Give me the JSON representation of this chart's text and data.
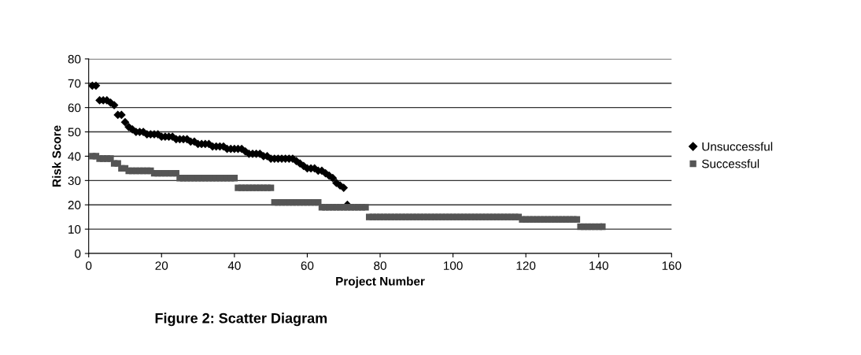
{
  "chart_data": {
    "type": "scatter",
    "title": "Figure 2: Scatter Diagram",
    "xlabel": "Project Number",
    "ylabel": "Risk Score",
    "xlim": [
      0,
      160
    ],
    "xticks": [
      0,
      20,
      40,
      60,
      80,
      100,
      120,
      140,
      160
    ],
    "ylim": [
      0,
      80
    ],
    "yticks": [
      0,
      10,
      20,
      30,
      40,
      50,
      60,
      70,
      80
    ],
    "grid": "y",
    "legend": "right",
    "series": [
      {
        "name": "Unsuccessful",
        "color": "#000000",
        "marker": "diamond",
        "x": [
          1,
          2,
          3,
          4,
          5,
          6,
          7,
          8,
          9,
          10,
          11,
          12,
          13,
          14,
          15,
          16,
          17,
          18,
          19,
          20,
          21,
          22,
          23,
          24,
          25,
          26,
          27,
          28,
          29,
          30,
          31,
          32,
          33,
          34,
          35,
          36,
          37,
          38,
          39,
          40,
          41,
          42,
          43,
          44,
          45,
          46,
          47,
          48,
          49,
          50,
          51,
          52,
          53,
          54,
          55,
          56,
          57,
          58,
          59,
          60,
          61,
          62,
          63,
          64,
          65,
          66,
          67,
          68,
          69,
          70,
          71
        ],
        "values": [
          69,
          69,
          63,
          63,
          63,
          62,
          61,
          57,
          57,
          54,
          52,
          51,
          50,
          50,
          50,
          49,
          49,
          49,
          49,
          48,
          48,
          48,
          48,
          47,
          47,
          47,
          47,
          46,
          46,
          45,
          45,
          45,
          45,
          44,
          44,
          44,
          44,
          43,
          43,
          43,
          43,
          43,
          42,
          41,
          41,
          41,
          41,
          40,
          40,
          39,
          39,
          39,
          39,
          39,
          39,
          39,
          38,
          37,
          36,
          35,
          35,
          35,
          34,
          34,
          33,
          32,
          31,
          29,
          28,
          27,
          20
        ]
      },
      {
        "name": "Successful",
        "color": "#555555",
        "marker": "square",
        "x": [
          1,
          2,
          3,
          4,
          5,
          6,
          7,
          8,
          9,
          10,
          11,
          12,
          13,
          14,
          15,
          16,
          17,
          18,
          19,
          20,
          21,
          22,
          23,
          24,
          25,
          26,
          27,
          28,
          29,
          30,
          31,
          32,
          33,
          34,
          35,
          36,
          37,
          38,
          39,
          40,
          41,
          42,
          43,
          44,
          45,
          46,
          47,
          48,
          49,
          50,
          51,
          52,
          53,
          54,
          55,
          56,
          57,
          58,
          59,
          60,
          61,
          62,
          63,
          64,
          65,
          66,
          67,
          68,
          69,
          70,
          71,
          72,
          73,
          74,
          75,
          76,
          77,
          78,
          79,
          80,
          81,
          82,
          83,
          84,
          85,
          86,
          87,
          88,
          89,
          90,
          91,
          92,
          93,
          94,
          95,
          96,
          97,
          98,
          99,
          100,
          101,
          102,
          103,
          104,
          105,
          106,
          107,
          108,
          109,
          110,
          111,
          112,
          113,
          114,
          115,
          116,
          117,
          118,
          119,
          120,
          121,
          122,
          123,
          124,
          125,
          126,
          127,
          128,
          129,
          130,
          131,
          132,
          133,
          134,
          135,
          136,
          137,
          138,
          139,
          140,
          141
        ],
        "values": [
          40,
          40,
          39,
          39,
          39,
          39,
          37,
          37,
          35,
          35,
          34,
          34,
          34,
          34,
          34,
          34,
          34,
          33,
          33,
          33,
          33,
          33,
          33,
          33,
          31,
          31,
          31,
          31,
          31,
          31,
          31,
          31,
          31,
          31,
          31,
          31,
          31,
          31,
          31,
          31,
          27,
          27,
          27,
          27,
          27,
          27,
          27,
          27,
          27,
          27,
          21,
          21,
          21,
          21,
          21,
          21,
          21,
          21,
          21,
          21,
          21,
          21,
          21,
          19,
          19,
          19,
          19,
          19,
          19,
          19,
          19,
          19,
          19,
          19,
          19,
          19,
          15,
          15,
          15,
          15,
          15,
          15,
          15,
          15,
          15,
          15,
          15,
          15,
          15,
          15,
          15,
          15,
          15,
          15,
          15,
          15,
          15,
          15,
          15,
          15,
          15,
          15,
          15,
          15,
          15,
          15,
          15,
          15,
          15,
          15,
          15,
          15,
          15,
          15,
          15,
          15,
          15,
          15,
          14,
          14,
          14,
          14,
          14,
          14,
          14,
          14,
          14,
          14,
          14,
          14,
          14,
          14,
          14,
          14,
          11,
          11,
          11,
          11,
          11,
          11,
          11
        ]
      }
    ]
  }
}
